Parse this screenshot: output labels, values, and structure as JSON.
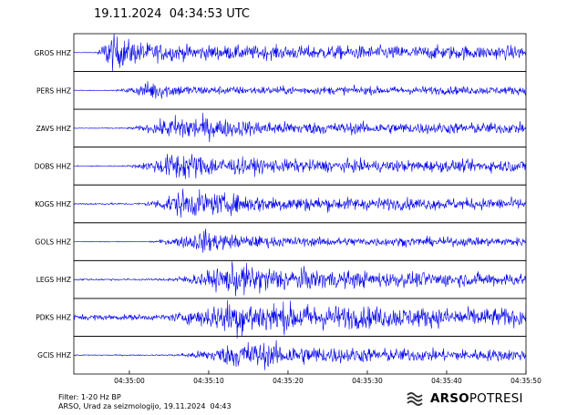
{
  "title": "19.11.2024  04:34:53 UTC",
  "chart_data": {
    "type": "line",
    "x_range_s": [
      -7,
      50
    ],
    "x_ticks": [
      {
        "t": 0,
        "label": "04:35:00"
      },
      {
        "t": 10,
        "label": "04:35:10"
      },
      {
        "t": 20,
        "label": "04:35:20"
      },
      {
        "t": 30,
        "label": "04:35:30"
      },
      {
        "t": 40,
        "label": "04:35:40"
      },
      {
        "t": 50,
        "label": "04:35:50"
      }
    ],
    "grid": false,
    "line_color": "#0000ee",
    "series": [
      {
        "name": "GROS HHZ",
        "onset_s": -4.5,
        "peak_s": -2.5,
        "amp": 1.0,
        "decay": 3.5,
        "noise": 0.015
      },
      {
        "name": "PERS HHZ",
        "onset_s": -2.0,
        "peak_s": 3.0,
        "amp": 0.55,
        "decay": 2.5,
        "noise": 0.02
      },
      {
        "name": "ZAVS HHZ",
        "onset_s": -0.5,
        "peak_s": 6.5,
        "amp": 0.75,
        "decay": 6.0,
        "noise": 0.03
      },
      {
        "name": "DOBS HHZ",
        "onset_s": -0.5,
        "peak_s": 6.0,
        "amp": 0.8,
        "decay": 5.5,
        "noise": 0.03
      },
      {
        "name": "KOGS HHZ",
        "onset_s": 1.0,
        "peak_s": 6.5,
        "amp": 0.7,
        "decay": 9.0,
        "noise": 0.05
      },
      {
        "name": "GOLS HHZ",
        "onset_s": 2.0,
        "peak_s": 9.5,
        "amp": 0.6,
        "decay": 4.0,
        "noise": 0.02
      },
      {
        "name": "LEGS HHZ",
        "onset_s": 3.5,
        "peak_s": 13.5,
        "amp": 0.8,
        "decay": 10.0,
        "noise": 0.05
      },
      {
        "name": "PDKS HHZ",
        "onset_s": 4.0,
        "peak_s": 13.0,
        "amp": 0.85,
        "decay": 12.0,
        "noise": 0.15
      },
      {
        "name": "GCIS HHZ",
        "onset_s": 4.5,
        "peak_s": 14.5,
        "amp": 0.75,
        "decay": 9.0,
        "noise": 0.03
      }
    ]
  },
  "footer": {
    "filter": "Filter: 1-20 Hz BP",
    "credit": "ARSO, Urad za seizmologijo, 19.11.2024  04:43"
  },
  "logo": {
    "icon": "arso-wave-logo-icon",
    "brand_bold": "ARSO",
    "brand_light": "POTRESI"
  }
}
